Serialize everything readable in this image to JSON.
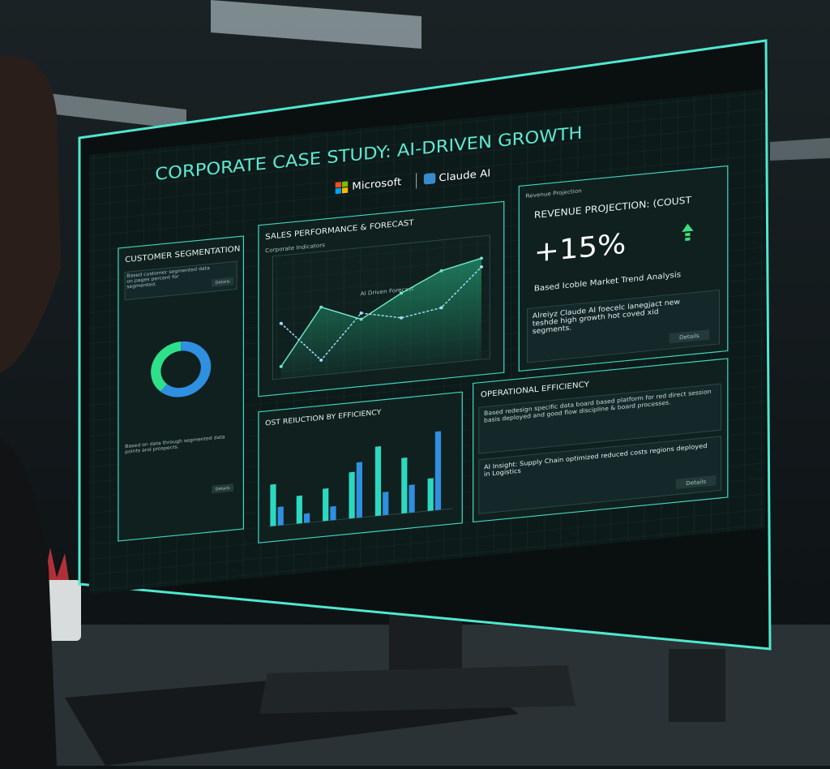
{
  "header": {
    "title": "CORPORATE CASE STUDY: AI-DRIVEN GROWTH",
    "brands": [
      "Microsoft",
      "Claude AI"
    ]
  },
  "panels": {
    "segmentation": {
      "title": "CUSTOMER SEGMENTATION",
      "text": "Based customer segmented data on pages percent for segmented.",
      "button": "Details",
      "donut": {
        "values": [
          62,
          38
        ],
        "colors": [
          "#2f8fe0",
          "#2ee08a"
        ]
      },
      "footer": "Based on data through segmented data points and prospects.",
      "button2": "Details"
    },
    "sales": {
      "title": "SALES PERFORMANCE & FORECAST",
      "subtitle": "Corporate Indicators",
      "annotation": "AI Driven Forecast",
      "series": [
        {
          "color": "#6fe8c8",
          "values": [
            10,
            55,
            42,
            60,
            75,
            82
          ]
        },
        {
          "color": "#9fe0ff",
          "values": [
            45,
            12,
            47,
            40,
            45,
            75
          ]
        }
      ],
      "ylim": [
        0,
        100
      ]
    },
    "revenue": {
      "label": "Revenue Projection",
      "title": "REVENUE PROJECTION: (COUST",
      "value": "+15%",
      "text": "Based Icoble Market Trend Analysis",
      "insight": "Alreiyz Claude AI foecelc lanegjact new teshde high growth hot coved xid segments.",
      "button": "Details"
    },
    "cost": {
      "title": "OST REIUCTION BY EFFICIENCY",
      "series": [
        {
          "color": "#2bd9c0",
          "values": [
            45,
            30,
            35,
            50,
            75,
            60,
            35
          ]
        },
        {
          "color": "#2f8fe0",
          "values": [
            20,
            10,
            15,
            60,
            25,
            30,
            85
          ]
        }
      ],
      "ylim": [
        0,
        100
      ]
    },
    "operations": {
      "title": "OPERATIONAL EFFICIENCY",
      "text": "Based redesign specific data board based platform for red direct session basis deployed and good flow discipline & board processes.",
      "insight": "AI Insight: Supply Chain optimized reduced costs regions deployed in Logistics",
      "button": "Details"
    }
  }
}
